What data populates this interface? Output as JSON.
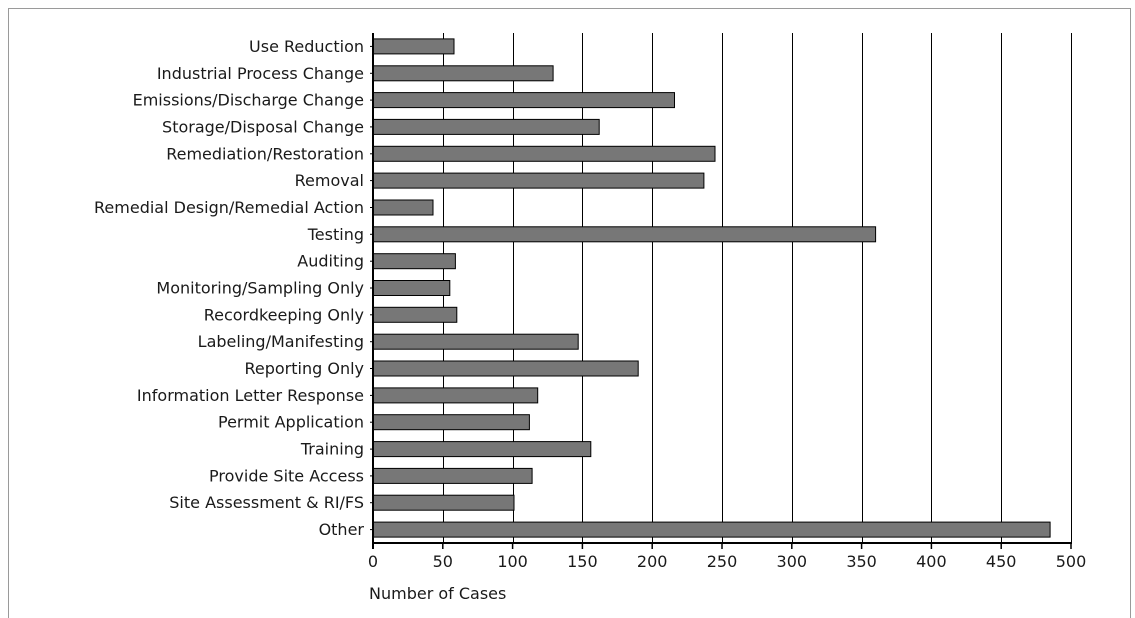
{
  "chart_data": {
    "type": "bar",
    "orientation": "horizontal",
    "title": "",
    "xlabel": "Number of Cases",
    "ylabel": "",
    "xlim": [
      0,
      500
    ],
    "x_ticks": [
      0,
      50,
      100,
      150,
      200,
      250,
      300,
      350,
      400,
      450,
      500
    ],
    "grid": "vertical",
    "categories": [
      "Use Reduction",
      "Industrial Process Change",
      "Emissions/Discharge Change",
      "Storage/Disposal Change",
      "Remediation/Restoration",
      "Removal",
      "Remedial Design/Remedial Action",
      "Testing",
      "Auditing",
      "Monitoring/Sampling Only",
      "Recordkeeping Only",
      "Labeling/Manifesting",
      "Reporting Only",
      "Information Letter Response",
      "Permit Application",
      "Training",
      "Provide Site Access",
      "Site Assessment & RI/FS",
      "Other"
    ],
    "values": [
      58,
      129,
      216,
      162,
      245,
      237,
      43,
      360,
      59,
      55,
      60,
      147,
      190,
      118,
      112,
      156,
      114,
      101,
      485
    ],
    "bar_color": "#777777"
  }
}
